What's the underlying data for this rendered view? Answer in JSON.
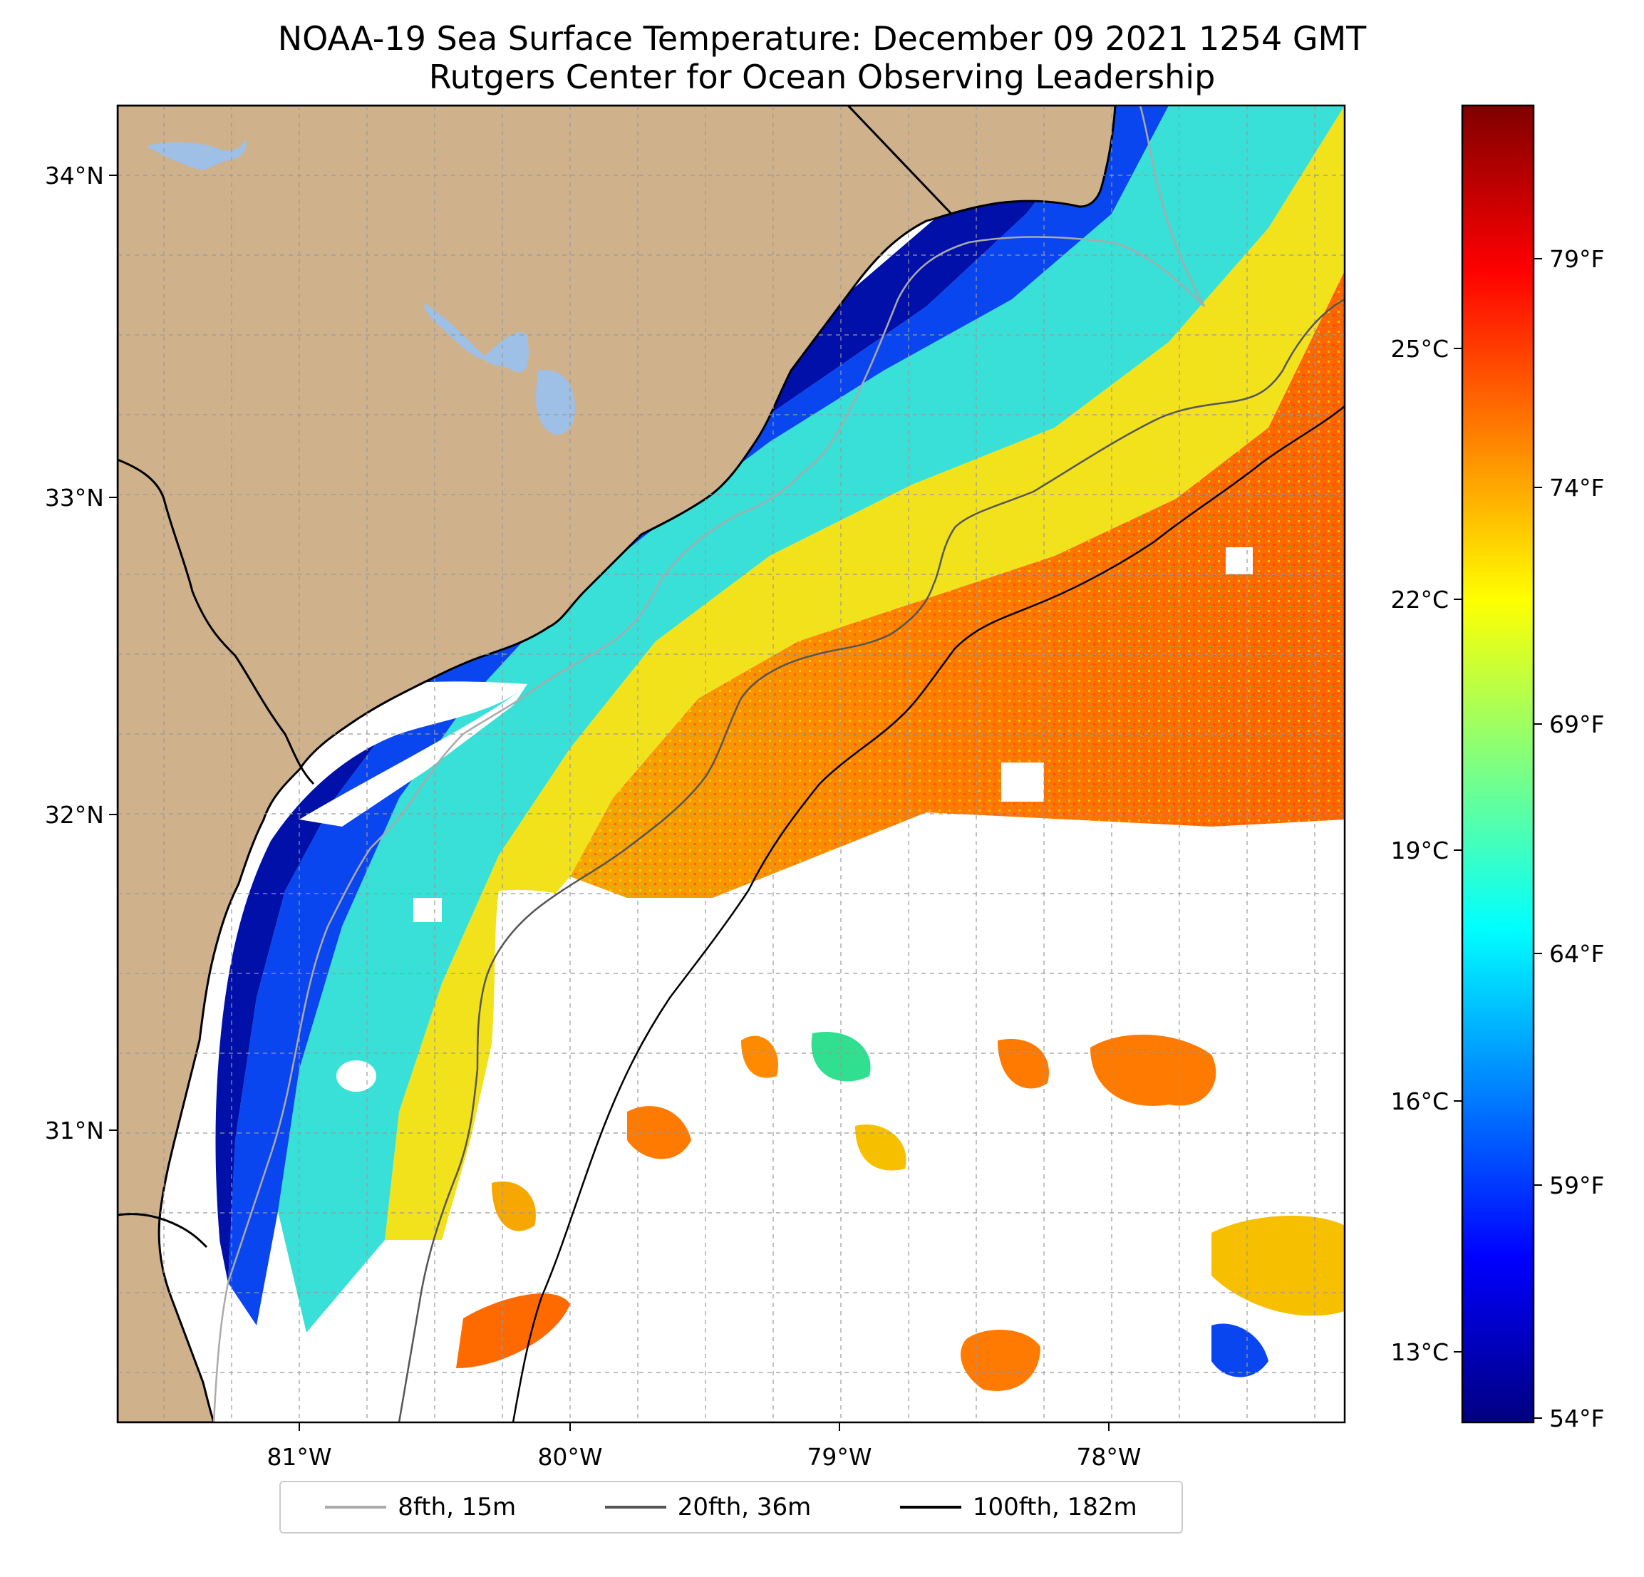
{
  "title": {
    "line1": "NOAA-19 Sea Surface Temperature: December 09 2021 1254 GMT",
    "line2": "Rutgers Center for Ocean Observing Leadership"
  },
  "map": {
    "lon_range": [
      -81.67,
      -77.17
    ],
    "lat_range": [
      30.08,
      34.22
    ],
    "lat_ticks": [
      {
        "value": 34,
        "label": "34°N"
      },
      {
        "value": 33,
        "label": "33°N"
      },
      {
        "value": 32,
        "label": "32°N"
      },
      {
        "value": 31,
        "label": "31°N"
      }
    ],
    "lon_ticks": [
      {
        "value": -81,
        "label": "81°W"
      },
      {
        "value": -80,
        "label": "80°W"
      },
      {
        "value": -79,
        "label": "79°W"
      },
      {
        "value": -78,
        "label": "78°W"
      }
    ],
    "grid": true,
    "colors": {
      "land": "#cfb28c",
      "lakes": "#9ebfe6",
      "gridline": "#999999",
      "isobath_8fth": "#aaaaaa",
      "isobath_20fth": "#555555",
      "isobath_100fth": "#000000"
    }
  },
  "colorbar": {
    "colormap": "jet",
    "celsius_ticks": [
      {
        "value": 25,
        "label": "25°C"
      },
      {
        "value": 22,
        "label": "22°C"
      },
      {
        "value": 19,
        "label": "19°C"
      },
      {
        "value": 16,
        "label": "16°C"
      },
      {
        "value": 13,
        "label": "13°C"
      }
    ],
    "fahrenheit_ticks": [
      {
        "value": 79,
        "label": "79°F"
      },
      {
        "value": 74,
        "label": "74°F"
      },
      {
        "value": 69,
        "label": "69°F"
      },
      {
        "value": 64,
        "label": "64°F"
      },
      {
        "value": 59,
        "label": "59°F"
      },
      {
        "value": 54,
        "label": "54°F"
      }
    ],
    "range_f": [
      53.6,
      82.4
    ]
  },
  "legend": {
    "items": [
      {
        "label": "8fth, 15m",
        "color": "#aaaaaa"
      },
      {
        "label": "20fth, 36m",
        "color": "#555555"
      },
      {
        "label": "100fth, 182m",
        "color": "#000000"
      }
    ]
  }
}
